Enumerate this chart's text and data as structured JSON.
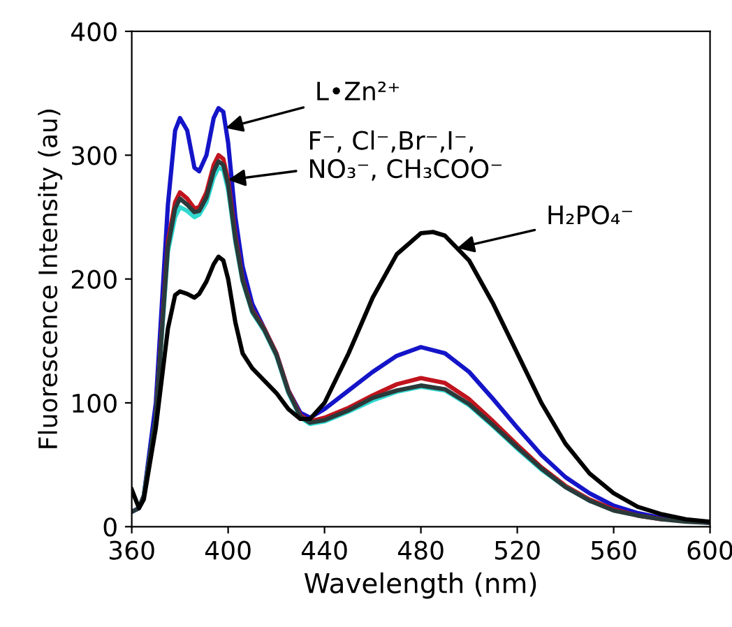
{
  "chart_data": {
    "type": "line",
    "xlabel": "Wavelength (nm)",
    "ylabel": "Fluorescence Intensity (au)",
    "xlim": [
      360,
      600
    ],
    "ylim": [
      0,
      400
    ],
    "xticks": [
      360,
      400,
      440,
      480,
      520,
      560,
      600
    ],
    "yticks": [
      0,
      100,
      200,
      300,
      400
    ],
    "grid": false,
    "legend": false,
    "marker": "none",
    "line_style": "solid",
    "series": [
      {
        "color": "#1414c8",
        "x": [
          360,
          363,
          365,
          370,
          375,
          378,
          380,
          383,
          386,
          388,
          391,
          394,
          396,
          398,
          400,
          403,
          406,
          410,
          415,
          420,
          425,
          430,
          434,
          440,
          450,
          460,
          470,
          480,
          490,
          500,
          510,
          520,
          530,
          540,
          550,
          560,
          570,
          580,
          590,
          600
        ],
        "values": [
          12,
          15,
          25,
          100,
          260,
          320,
          330,
          320,
          290,
          287,
          300,
          330,
          338,
          335,
          310,
          250,
          210,
          180,
          160,
          140,
          110,
          92,
          88,
          95,
          110,
          125,
          138,
          145,
          140,
          125,
          103,
          80,
          58,
          40,
          27,
          17,
          11,
          7,
          5,
          3
        ]
      },
      {
        "color": "#c0141e",
        "x": [
          370,
          375,
          378,
          380,
          383,
          386,
          388,
          391,
          394,
          396,
          398,
          400,
          403,
          406,
          410,
          415,
          420,
          425,
          430,
          434,
          440,
          450,
          460,
          470,
          480,
          490,
          500,
          510,
          520,
          530,
          540,
          550,
          560,
          570,
          580
        ],
        "values": [
          90,
          230,
          262,
          270,
          265,
          257,
          258,
          270,
          292,
          300,
          297,
          280,
          235,
          200,
          175,
          160,
          140,
          110,
          90,
          85,
          88,
          96,
          106,
          115,
          120,
          116,
          103,
          85,
          66,
          48,
          33,
          22,
          14,
          9,
          6
        ]
      },
      {
        "color": "#30d8d0",
        "x": [
          365,
          370,
          375,
          378,
          380,
          383,
          386,
          388,
          391,
          394,
          396,
          398,
          400,
          403,
          406,
          410,
          415,
          420,
          425,
          430,
          434,
          440,
          450,
          460,
          470,
          480,
          490,
          500,
          510,
          520,
          530,
          540,
          550
        ],
        "values": [
          25,
          88,
          222,
          250,
          258,
          255,
          250,
          252,
          262,
          282,
          290,
          288,
          272,
          230,
          198,
          173,
          158,
          138,
          108,
          88,
          83,
          85,
          93,
          102,
          109,
          113,
          110,
          98,
          81,
          63,
          46,
          32,
          21
        ]
      },
      {
        "color": "#2a3a3a",
        "x": [
          360,
          363,
          365,
          370,
          375,
          378,
          380,
          383,
          386,
          388,
          391,
          394,
          396,
          398,
          400,
          403,
          406,
          410,
          415,
          420,
          425,
          430,
          434,
          440,
          450,
          460,
          470,
          480,
          490,
          500,
          510,
          520,
          530,
          540,
          550,
          560,
          570,
          580,
          590,
          600
        ],
        "values": [
          12,
          15,
          25,
          89,
          226,
          257,
          265,
          260,
          254,
          255,
          266,
          287,
          295,
          292,
          276,
          232,
          199,
          174,
          159,
          139,
          109,
          89,
          84,
          86,
          94,
          104,
          110,
          114,
          111,
          99,
          82,
          64,
          47,
          32,
          21,
          13,
          9,
          6,
          4,
          3
        ]
      },
      {
        "color": "#000000",
        "x": [
          360,
          363,
          365,
          370,
          375,
          378,
          380,
          383,
          386,
          388,
          391,
          394,
          396,
          398,
          400,
          403,
          406,
          410,
          415,
          420,
          425,
          430,
          434,
          440,
          450,
          460,
          470,
          480,
          485,
          490,
          500,
          510,
          520,
          530,
          540,
          550,
          560,
          570,
          580,
          590,
          600
        ],
        "values": [
          30,
          15,
          22,
          80,
          160,
          187,
          190,
          188,
          185,
          188,
          198,
          212,
          218,
          215,
          200,
          165,
          140,
          128,
          118,
          108,
          95,
          87,
          87,
          100,
          140,
          185,
          220,
          237,
          238,
          235,
          215,
          180,
          140,
          100,
          67,
          43,
          27,
          16,
          10,
          6,
          4
        ]
      }
    ],
    "annotations": [
      {
        "text": "L•Zn²⁺",
        "x": 399,
        "y": 322
      },
      {
        "text": "F⁻, Cl⁻,Br⁻,I⁻,\nNO₃⁻, CH₃COO⁻",
        "x": 400,
        "y": 280
      },
      {
        "text": "H₂PO₄⁻",
        "x": 495,
        "y": 225
      }
    ]
  }
}
